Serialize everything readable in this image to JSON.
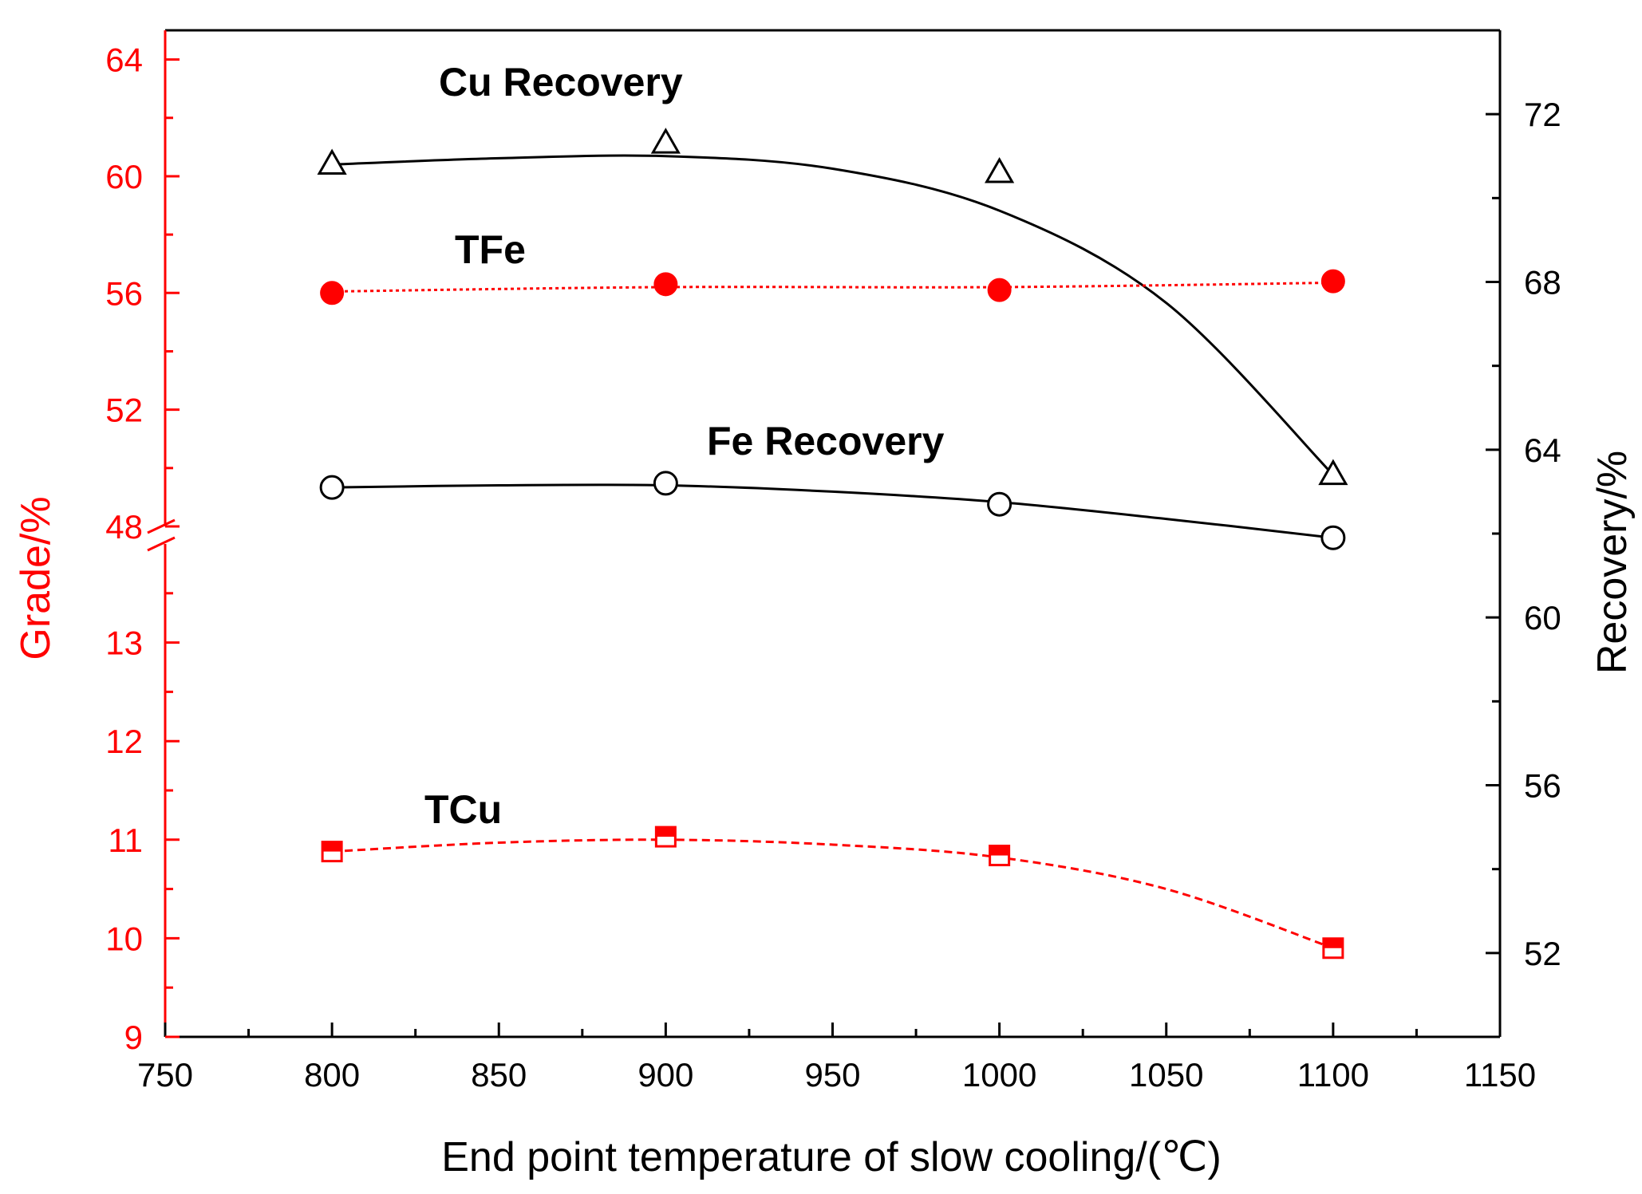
{
  "chart_data": {
    "type": "line",
    "xlabel": "End point temperature of slow cooling/(℃)",
    "ylabel_left": "Grade/%",
    "ylabel_right": "Recovery/%",
    "xlim": [
      750,
      1150
    ],
    "x_ticks": [
      750,
      800,
      850,
      900,
      950,
      1000,
      1050,
      1100,
      1150
    ],
    "y_left_broken_axis": {
      "lower": {
        "range": [
          9,
          14
        ],
        "ticks": [
          9,
          10,
          11,
          12,
          13
        ]
      },
      "upper": {
        "range": [
          48,
          65
        ],
        "ticks": [
          48,
          52,
          56,
          60,
          64
        ]
      }
    },
    "y_right_range": [
      50,
      74
    ],
    "y_right_ticks": [
      52,
      56,
      60,
      64,
      68,
      72
    ],
    "series": [
      {
        "name": "Cu Recovery",
        "axis": "right",
        "marker": "open-triangle",
        "line": "solid",
        "color": "#000000",
        "x": [
          800,
          900,
          1000,
          1100
        ],
        "values": [
          70.8,
          71.3,
          70.6,
          63.4
        ],
        "fit": [
          [
            800,
            70.8
          ],
          [
            850,
            70.95
          ],
          [
            900,
            71.0
          ],
          [
            950,
            70.7
          ],
          [
            1000,
            69.7
          ],
          [
            1050,
            67.5
          ],
          [
            1100,
            63.4
          ]
        ]
      },
      {
        "name": "TFe",
        "axis": "left-upper",
        "marker": "filled-circle",
        "line": "dotted",
        "color": "#ff0000",
        "x": [
          800,
          900,
          1000,
          1100
        ],
        "values": [
          56.0,
          56.3,
          56.1,
          56.4
        ],
        "fit": [
          [
            800,
            56.05
          ],
          [
            900,
            56.2
          ],
          [
            1000,
            56.2
          ],
          [
            1100,
            56.35
          ]
        ]
      },
      {
        "name": "Fe Recovery",
        "axis": "right",
        "marker": "open-circle",
        "line": "solid",
        "color": "#000000",
        "x": [
          800,
          900,
          1000,
          1100
        ],
        "values": [
          63.1,
          63.2,
          62.7,
          61.9
        ],
        "fit": [
          [
            800,
            63.1
          ],
          [
            850,
            63.15
          ],
          [
            900,
            63.15
          ],
          [
            950,
            63.0
          ],
          [
            1000,
            62.75
          ],
          [
            1050,
            62.35
          ],
          [
            1100,
            61.9
          ]
        ]
      },
      {
        "name": "TCu",
        "axis": "left-lower",
        "marker": "half-filled-square",
        "line": "dashed",
        "color": "#ff0000",
        "x": [
          800,
          900,
          1000,
          1100
        ],
        "values": [
          10.88,
          11.03,
          10.84,
          9.9
        ],
        "fit": [
          [
            800,
            10.88
          ],
          [
            850,
            10.97
          ],
          [
            900,
            11.0
          ],
          [
            950,
            10.95
          ],
          [
            1000,
            10.82
          ],
          [
            1050,
            10.5
          ],
          [
            1100,
            9.9
          ]
        ]
      }
    ],
    "annotations": [
      "Cu Recovery",
      "TFe",
      "Fe Recovery",
      "TCu"
    ]
  },
  "colors": {
    "left_axis": "#ff0000",
    "right_axis": "#000000"
  }
}
